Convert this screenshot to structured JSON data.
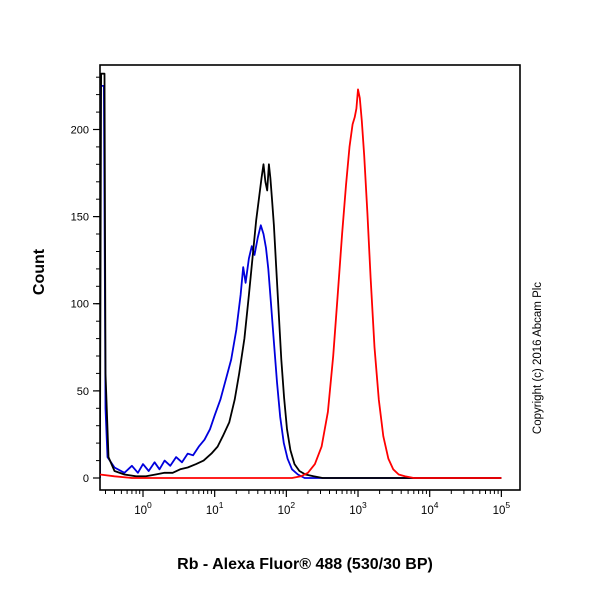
{
  "figure": {
    "copyright": "Copyright (c) 2016 Abcam Plc"
  },
  "chart_data": {
    "type": "line",
    "title": "",
    "xlabel": "Rb - Alexa Fluor® 488 (530/30 BP)",
    "ylabel": "Count",
    "x_scale": "log10",
    "xlim_log10": [
      -0.6,
      5.26
    ],
    "ylim": [
      0,
      237
    ],
    "grid": false,
    "legend": "none",
    "x_ticks": [
      {
        "base": "10",
        "exp": "0"
      },
      {
        "base": "10",
        "exp": "1"
      },
      {
        "base": "10",
        "exp": "2"
      },
      {
        "base": "10",
        "exp": "3"
      },
      {
        "base": "10",
        "exp": "4"
      },
      {
        "base": "10",
        "exp": "5"
      }
    ],
    "y_ticks": [
      {
        "value": 0,
        "label": "0"
      },
      {
        "value": 50,
        "label": "50"
      },
      {
        "value": 100,
        "label": "100"
      },
      {
        "value": 150,
        "label": "150"
      },
      {
        "value": 200,
        "label": "200"
      }
    ],
    "y_minor_step": 10,
    "series": [
      {
        "name": "blue-curve",
        "color": "#0000dd",
        "points": [
          [
            0.25,
            0
          ],
          [
            0.255,
            225
          ],
          [
            0.285,
            225
          ],
          [
            0.3,
            40
          ],
          [
            0.32,
            12
          ],
          [
            0.4,
            6
          ],
          [
            0.55,
            3
          ],
          [
            0.7,
            7
          ],
          [
            0.85,
            3
          ],
          [
            1.0,
            8
          ],
          [
            1.2,
            4
          ],
          [
            1.45,
            9
          ],
          [
            1.7,
            5
          ],
          [
            2.0,
            10
          ],
          [
            2.4,
            7
          ],
          [
            2.9,
            12
          ],
          [
            3.5,
            9
          ],
          [
            4.2,
            14
          ],
          [
            5.0,
            13
          ],
          [
            6.0,
            18
          ],
          [
            7.2,
            22
          ],
          [
            8.6,
            28
          ],
          [
            10,
            36
          ],
          [
            12,
            45
          ],
          [
            14,
            55
          ],
          [
            17,
            68
          ],
          [
            20,
            85
          ],
          [
            23,
            105
          ],
          [
            25,
            121
          ],
          [
            27,
            112
          ],
          [
            30,
            126
          ],
          [
            33,
            133
          ],
          [
            36,
            128
          ],
          [
            40,
            138
          ],
          [
            44,
            145
          ],
          [
            48,
            140
          ],
          [
            52,
            132
          ],
          [
            56,
            120
          ],
          [
            61,
            100
          ],
          [
            67,
            78
          ],
          [
            74,
            55
          ],
          [
            82,
            35
          ],
          [
            92,
            20
          ],
          [
            104,
            11
          ],
          [
            120,
            5
          ],
          [
            145,
            2
          ],
          [
            180,
            0
          ],
          [
            1000,
            0
          ],
          [
            100000,
            0
          ]
        ]
      },
      {
        "name": "black-curve",
        "color": "#000000",
        "points": [
          [
            0.25,
            0
          ],
          [
            0.26,
            232
          ],
          [
            0.29,
            232
          ],
          [
            0.3,
            60
          ],
          [
            0.33,
            12
          ],
          [
            0.4,
            4
          ],
          [
            0.55,
            2
          ],
          [
            0.8,
            1
          ],
          [
            1.1,
            1
          ],
          [
            1.5,
            2
          ],
          [
            2.0,
            3
          ],
          [
            2.6,
            3
          ],
          [
            3.3,
            5
          ],
          [
            4.2,
            6
          ],
          [
            5.5,
            8
          ],
          [
            7,
            10
          ],
          [
            9,
            14
          ],
          [
            11,
            18
          ],
          [
            13,
            24
          ],
          [
            16,
            32
          ],
          [
            19,
            45
          ],
          [
            22,
            60
          ],
          [
            26,
            80
          ],
          [
            30,
            105
          ],
          [
            34,
            128
          ],
          [
            38,
            148
          ],
          [
            42,
            162
          ],
          [
            45,
            172
          ],
          [
            48,
            180
          ],
          [
            51,
            170
          ],
          [
            54,
            165
          ],
          [
            57,
            180
          ],
          [
            60,
            172
          ],
          [
            63,
            160
          ],
          [
            67,
            145
          ],
          [
            72,
            122
          ],
          [
            78,
            96
          ],
          [
            85,
            68
          ],
          [
            93,
            46
          ],
          [
            102,
            28
          ],
          [
            114,
            16
          ],
          [
            130,
            8
          ],
          [
            152,
            4
          ],
          [
            185,
            2
          ],
          [
            240,
            1
          ],
          [
            320,
            0
          ],
          [
            1000,
            0
          ],
          [
            100000,
            0
          ]
        ]
      },
      {
        "name": "red-curve",
        "color": "#ff0000",
        "points": [
          [
            0.25,
            2
          ],
          [
            0.4,
            1
          ],
          [
            0.7,
            0
          ],
          [
            2,
            0
          ],
          [
            10,
            0
          ],
          [
            60,
            0
          ],
          [
            120,
            0
          ],
          [
            160,
            1
          ],
          [
            200,
            3
          ],
          [
            250,
            8
          ],
          [
            310,
            18
          ],
          [
            380,
            38
          ],
          [
            450,
            70
          ],
          [
            520,
            105
          ],
          [
            600,
            140
          ],
          [
            680,
            168
          ],
          [
            760,
            190
          ],
          [
            840,
            203
          ],
          [
            900,
            207
          ],
          [
            950,
            212
          ],
          [
            1000,
            223
          ],
          [
            1060,
            218
          ],
          [
            1130,
            205
          ],
          [
            1220,
            185
          ],
          [
            1350,
            152
          ],
          [
            1500,
            115
          ],
          [
            1700,
            75
          ],
          [
            1950,
            45
          ],
          [
            2250,
            24
          ],
          [
            2650,
            11
          ],
          [
            3100,
            5
          ],
          [
            3700,
            2
          ],
          [
            4500,
            1
          ],
          [
            6000,
            0
          ],
          [
            100000,
            0
          ]
        ]
      }
    ]
  }
}
